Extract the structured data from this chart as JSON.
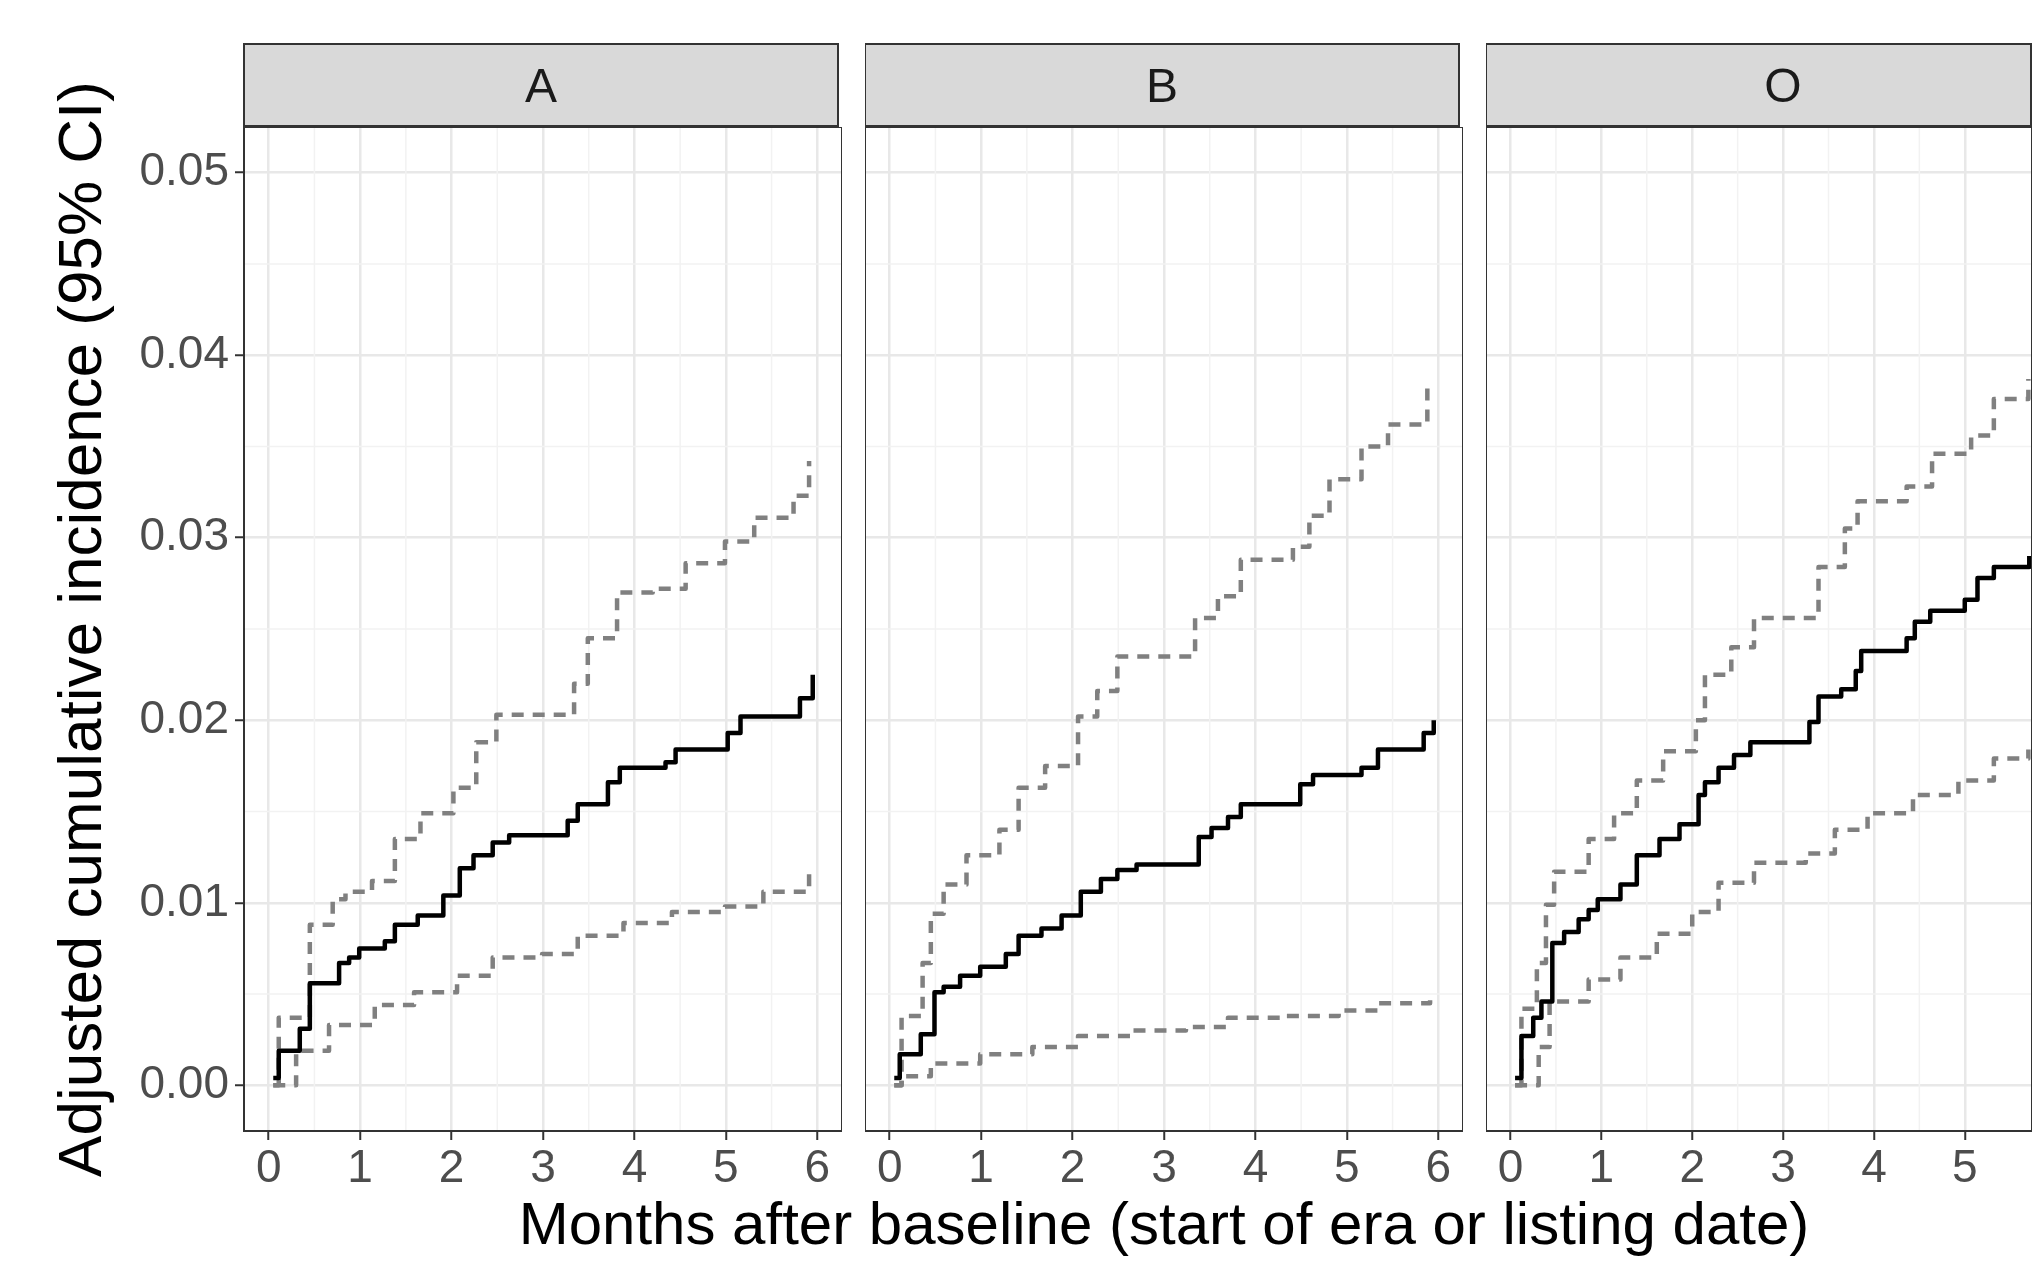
{
  "chart_data": [
    {
      "type": "step",
      "title": "A",
      "ylabel": "Adjusted cumulative incidence (95% CI)",
      "xlim": [
        -0.27,
        6.27
      ],
      "ylim": [
        -0.0025,
        0.0525
      ],
      "xticks": [
        0,
        1,
        2,
        3,
        4,
        5,
        6
      ],
      "yticks": [
        {
          "value": 0,
          "label": "0.00"
        },
        {
          "value": 0.01,
          "label": "0.01"
        },
        {
          "value": 0.02,
          "label": "0.02"
        },
        {
          "value": 0.03,
          "label": "0.03"
        },
        {
          "value": 0.04,
          "label": "0.04"
        },
        {
          "value": 0.05,
          "label": "0.05"
        }
      ],
      "grid": true,
      "series": [
        {
          "color": "#808080",
          "line_style": "dashed",
          "x": [
            0.05,
            0.11,
            0.45,
            0.7,
            0.84,
            1.13,
            1.38,
            1.66,
            2.02,
            2.27,
            2.49,
            3.34,
            3.49,
            3.81,
            4.2,
            4.56,
            4.99,
            5.31,
            5.74,
            5.91
          ],
          "values": [
            0,
            0.0037,
            0.0088,
            0.0102,
            0.0106,
            0.0112,
            0.0135,
            0.0149,
            0.0163,
            0.0188,
            0.0203,
            0.022,
            0.0245,
            0.027,
            0.0272,
            0.0286,
            0.0298,
            0.0311,
            0.0323,
            0.0342
          ]
        },
        {
          "color": "#808080",
          "line_style": "dashed",
          "x": [
            0.05,
            0.3,
            0.66,
            1.16,
            1.59,
            2.06,
            2.45,
            2.99,
            3.38,
            3.88,
            4.41,
            4.99,
            5.41,
            5.91
          ],
          "values": [
            0,
            0.0019,
            0.0033,
            0.0044,
            0.0051,
            0.006,
            0.007,
            0.0072,
            0.0082,
            0.0089,
            0.0095,
            0.0098,
            0.0106,
            0.0119
          ]
        },
        {
          "color": "#000000",
          "line_style": "solid",
          "x": [
            0.05,
            0.11,
            0.34,
            0.45,
            0.77,
            0.88,
            0.99,
            1.27,
            1.38,
            1.63,
            1.91,
            2.09,
            2.24,
            2.45,
            2.63,
            3.27,
            3.38,
            3.71,
            3.84,
            4.34,
            4.45,
            5.02,
            5.16,
            5.81,
            5.95
          ],
          "values": [
            0.0004,
            0.0019,
            0.0031,
            0.0056,
            0.0067,
            0.007,
            0.0075,
            0.0079,
            0.0088,
            0.0093,
            0.0104,
            0.0119,
            0.0126,
            0.0133,
            0.0137,
            0.0145,
            0.0154,
            0.0166,
            0.0174,
            0.0177,
            0.0184,
            0.0193,
            0.0202,
            0.0212,
            0.0225
          ]
        }
      ]
    },
    {
      "type": "step",
      "title": "B",
      "xlabel": "Months after baseline (start of era or listing date)",
      "xlim": [
        -0.27,
        6.27
      ],
      "ylim": [
        -0.0025,
        0.0525
      ],
      "xticks": [
        0,
        1,
        2,
        3,
        4,
        5,
        6
      ],
      "yticks": [
        0,
        0.01,
        0.02,
        0.03,
        0.04,
        0.05
      ],
      "grid": true,
      "tick_labels": "x",
      "series": [
        {
          "color": "#808080",
          "line_style": "dashed",
          "x": [
            0.05,
            0.13,
            0.36,
            0.45,
            0.59,
            0.84,
            1.2,
            1.41,
            1.7,
            2.06,
            2.27,
            2.49,
            3.34,
            3.59,
            3.84,
            4.41,
            4.59,
            4.81,
            5.16,
            5.45,
            5.88,
            5.95
          ],
          "values": [
            0,
            0.0038,
            0.0067,
            0.0094,
            0.011,
            0.0126,
            0.014,
            0.0163,
            0.0175,
            0.0202,
            0.0216,
            0.0235,
            0.0256,
            0.0268,
            0.0288,
            0.0295,
            0.0312,
            0.0332,
            0.035,
            0.0362,
            0.0382,
            0.0382
          ]
        },
        {
          "color": "#808080",
          "line_style": "dashed",
          "x": [
            0.05,
            0.13,
            0.45,
            0.99,
            1.56,
            2.06,
            2.63,
            3.24,
            3.7,
            4.34,
            4.91,
            5.34,
            5.91
          ],
          "values": [
            0,
            0.0005,
            0.0012,
            0.0017,
            0.0021,
            0.0027,
            0.003,
            0.0032,
            0.0037,
            0.0038,
            0.0041,
            0.0045,
            0.0049
          ]
        },
        {
          "color": "#000000",
          "line_style": "solid",
          "x": [
            0.05,
            0.11,
            0.34,
            0.49,
            0.59,
            0.77,
            0.99,
            1.27,
            1.41,
            1.66,
            1.88,
            2.09,
            2.31,
            2.49,
            2.7,
            3.38,
            3.52,
            3.7,
            3.84,
            4.49,
            4.63,
            5.16,
            5.34,
            5.84,
            5.95
          ],
          "values": [
            0.0004,
            0.0017,
            0.0028,
            0.0051,
            0.0054,
            0.006,
            0.0065,
            0.0072,
            0.0082,
            0.0086,
            0.0093,
            0.0106,
            0.0113,
            0.0118,
            0.0121,
            0.0136,
            0.0141,
            0.0147,
            0.0154,
            0.0165,
            0.017,
            0.0174,
            0.0184,
            0.0193,
            0.02
          ]
        }
      ]
    },
    {
      "type": "step",
      "title": "O",
      "xlim": [
        -0.27,
        5.74
      ],
      "ylim": [
        -0.0025,
        0.0525
      ],
      "xticks": [
        0,
        1,
        2,
        3,
        4,
        5
      ],
      "yticks": [
        0,
        0.01,
        0.02,
        0.03,
        0.04,
        0.05
      ],
      "grid": true,
      "tick_labels": "x",
      "series": [
        {
          "color": "#808080",
          "line_style": "dashed",
          "x": [
            0.05,
            0.12,
            0.29,
            0.39,
            0.48,
            0.86,
            1.14,
            1.39,
            1.68,
            2.04,
            2.14,
            2.43,
            2.68,
            3.39,
            3.68,
            3.82,
            4.36,
            4.64,
            5.07,
            5.32,
            5.7
          ],
          "values": [
            0,
            0.0042,
            0.0067,
            0.0099,
            0.0117,
            0.0135,
            0.0149,
            0.0167,
            0.0183,
            0.02,
            0.0225,
            0.024,
            0.0256,
            0.0284,
            0.0305,
            0.032,
            0.0328,
            0.0346,
            0.0356,
            0.0376,
            0.0387
          ]
        },
        {
          "color": "#808080",
          "line_style": "dashed",
          "x": [
            0.05,
            0.31,
            0.43,
            0.86,
            1.21,
            1.61,
            2.0,
            2.29,
            2.68,
            3.25,
            3.57,
            3.93,
            4.43,
            4.93,
            5.32,
            5.7
          ],
          "values": [
            0,
            0.0021,
            0.0046,
            0.0058,
            0.007,
            0.0083,
            0.0095,
            0.0111,
            0.0122,
            0.0127,
            0.014,
            0.0149,
            0.0159,
            0.0167,
            0.0179,
            0.0184
          ]
        },
        {
          "color": "#000000",
          "line_style": "solid",
          "x": [
            0.05,
            0.12,
            0.25,
            0.34,
            0.46,
            0.59,
            0.75,
            0.86,
            0.96,
            1.21,
            1.39,
            1.64,
            1.86,
            2.07,
            2.14,
            2.29,
            2.46,
            2.64,
            3.29,
            3.39,
            3.64,
            3.8,
            3.86,
            4.36,
            4.45,
            4.62,
            5.0,
            5.14,
            5.32,
            5.71
          ],
          "values": [
            0.0004,
            0.0027,
            0.0037,
            0.0046,
            0.0078,
            0.0084,
            0.0091,
            0.0096,
            0.0102,
            0.011,
            0.0126,
            0.0135,
            0.0143,
            0.0159,
            0.0166,
            0.0174,
            0.0181,
            0.0188,
            0.0199,
            0.0213,
            0.0217,
            0.0227,
            0.0238,
            0.0245,
            0.0254,
            0.026,
            0.0266,
            0.0278,
            0.0284,
            0.029
          ]
        }
      ]
    }
  ]
}
